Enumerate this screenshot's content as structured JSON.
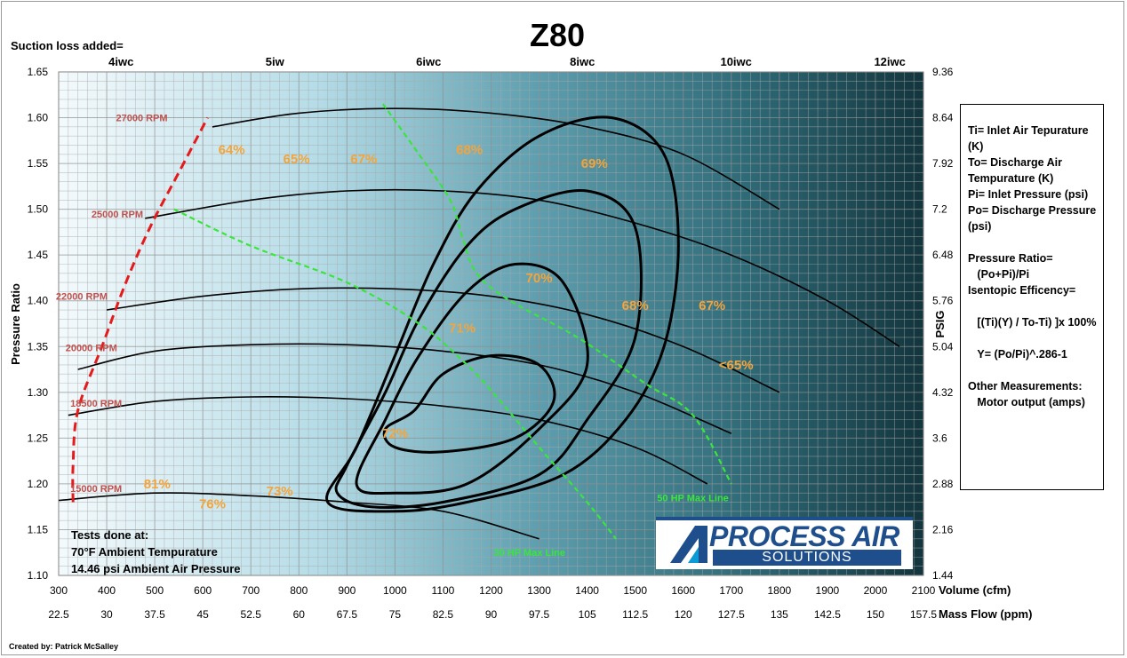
{
  "chart_data": {
    "type": "line",
    "title": "Z80",
    "xlabel": "Volume (cfm)",
    "x2label": "Mass Flow (ppm)",
    "ylabel": "Pressure Ratio",
    "y2label": "PSIG",
    "suction_label": "Suction loss added=",
    "xlim": [
      300,
      2100
    ],
    "ylim": [
      1.1,
      1.65
    ],
    "x_ticks": [
      300,
      400,
      500,
      600,
      700,
      800,
      900,
      1000,
      1100,
      1200,
      1300,
      1400,
      1500,
      1600,
      1700,
      1800,
      1900,
      2000,
      2100
    ],
    "x2_ticks": [
      "22.5",
      "30",
      "37.5",
      "45",
      "52.5",
      "60",
      "67.5",
      "75",
      "82.5",
      "90",
      "97.5",
      "105",
      "112.5",
      "120",
      "127.5",
      "135",
      "142.5",
      "150",
      "157.5"
    ],
    "y_ticks": [
      "1.10",
      "1.15",
      "1.20",
      "1.25",
      "1.30",
      "1.35",
      "1.40",
      "1.45",
      "1.50",
      "1.55",
      "1.60",
      "1.65"
    ],
    "y2_ticks": [
      "1.44",
      "2.16",
      "2.88",
      "3.6",
      "4.32",
      "5.04",
      "5.76",
      "6.48",
      "7.2",
      "7.92",
      "8.64",
      "9.36"
    ],
    "suction_ticks": [
      {
        "label": "4iwc",
        "x": 430
      },
      {
        "label": "5iw",
        "x": 750
      },
      {
        "label": "6iwc",
        "x": 1070
      },
      {
        "label": "8iwc",
        "x": 1390
      },
      {
        "label": "10iwc",
        "x": 1710
      },
      {
        "label": "12iwc",
        "x": 2030
      }
    ],
    "grid": true,
    "speed_lines": [
      {
        "name": "15000 RPM",
        "label_at": [
          378,
          1.195
        ],
        "points": [
          [
            300,
            1.182
          ],
          [
            500,
            1.19
          ],
          [
            700,
            1.187
          ],
          [
            900,
            1.18
          ],
          [
            1100,
            1.17
          ],
          [
            1300,
            1.14
          ]
        ]
      },
      {
        "name": "18500 RPM",
        "label_at": [
          378,
          1.288
        ],
        "points": [
          [
            320,
            1.275
          ],
          [
            500,
            1.29
          ],
          [
            700,
            1.295
          ],
          [
            900,
            1.293
          ],
          [
            1100,
            1.285
          ],
          [
            1300,
            1.27
          ],
          [
            1500,
            1.24
          ],
          [
            1650,
            1.2
          ]
        ]
      },
      {
        "name": "20000 RPM",
        "label_at": [
          368,
          1.349
        ],
        "points": [
          [
            340,
            1.325
          ],
          [
            500,
            1.345
          ],
          [
            700,
            1.352
          ],
          [
            900,
            1.352
          ],
          [
            1100,
            1.345
          ],
          [
            1300,
            1.33
          ],
          [
            1500,
            1.3
          ],
          [
            1700,
            1.255
          ]
        ]
      },
      {
        "name": "22000 RPM",
        "label_at": [
          348,
          1.405
        ],
        "points": [
          [
            400,
            1.39
          ],
          [
            600,
            1.405
          ],
          [
            800,
            1.413
          ],
          [
            1000,
            1.413
          ],
          [
            1200,
            1.405
          ],
          [
            1400,
            1.385
          ],
          [
            1600,
            1.35
          ],
          [
            1800,
            1.3
          ]
        ]
      },
      {
        "name": "25000 RPM",
        "label_at": [
          422,
          1.495
        ],
        "points": [
          [
            480,
            1.49
          ],
          [
            700,
            1.51
          ],
          [
            900,
            1.52
          ],
          [
            1100,
            1.52
          ],
          [
            1300,
            1.51
          ],
          [
            1500,
            1.485
          ],
          [
            1700,
            1.45
          ],
          [
            1900,
            1.4
          ],
          [
            2050,
            1.35
          ]
        ]
      },
      {
        "name": "27000 RPM",
        "label_at": [
          473,
          1.6
        ],
        "points": [
          [
            620,
            1.59
          ],
          [
            800,
            1.605
          ],
          [
            1000,
            1.61
          ],
          [
            1200,
            1.605
          ],
          [
            1400,
            1.59
          ],
          [
            1600,
            1.56
          ],
          [
            1800,
            1.5
          ]
        ]
      }
    ],
    "efficiency_labels": [
      {
        "label": "64%",
        "x": 660,
        "y": 1.565
      },
      {
        "label": "65%",
        "x": 795,
        "y": 1.555
      },
      {
        "label": "67%",
        "x": 935,
        "y": 1.555
      },
      {
        "label": "68%",
        "x": 1155,
        "y": 1.565
      },
      {
        "label": "69%",
        "x": 1415,
        "y": 1.55
      },
      {
        "label": "70%",
        "x": 1300,
        "y": 1.425
      },
      {
        "label": "68%",
        "x": 1500,
        "y": 1.395
      },
      {
        "label": "67%",
        "x": 1660,
        "y": 1.395
      },
      {
        "label": "71%",
        "x": 1140,
        "y": 1.37
      },
      {
        "label": "<65%",
        "x": 1710,
        "y": 1.33
      },
      {
        "label": "72%",
        "x": 1000,
        "y": 1.255
      },
      {
        "label": "81%",
        "x": 505,
        "y": 1.2
      },
      {
        "label": "73%",
        "x": 760,
        "y": 1.192
      },
      {
        "label": "76%",
        "x": 620,
        "y": 1.178
      }
    ],
    "surge_line": {
      "color": "#e41a1c",
      "points": [
        [
          330,
          1.18
        ],
        [
          330,
          1.22
        ],
        [
          340,
          1.28
        ],
        [
          390,
          1.35
        ],
        [
          440,
          1.42
        ],
        [
          490,
          1.48
        ],
        [
          550,
          1.54
        ],
        [
          610,
          1.6
        ]
      ]
    },
    "max_lines": [
      {
        "name": "50 HP Max Line",
        "color": "#39e639",
        "label_at": [
          1620,
          1.185
        ],
        "points": [
          [
            975,
            1.615
          ],
          [
            1050,
            1.56
          ],
          [
            1115,
            1.51
          ],
          [
            1140,
            1.47
          ],
          [
            1170,
            1.43
          ],
          [
            1240,
            1.4
          ],
          [
            1380,
            1.36
          ],
          [
            1520,
            1.31
          ],
          [
            1620,
            1.275
          ],
          [
            1700,
            1.2
          ]
        ]
      },
      {
        "name": "30 HP Max Line",
        "color": "#39e639",
        "label_at": [
          1280,
          1.125
        ],
        "points": [
          [
            540,
            1.5
          ],
          [
            700,
            1.46
          ],
          [
            900,
            1.42
          ],
          [
            1050,
            1.375
          ],
          [
            1150,
            1.33
          ],
          [
            1220,
            1.29
          ],
          [
            1300,
            1.24
          ],
          [
            1400,
            1.18
          ],
          [
            1460,
            1.14
          ]
        ]
      }
    ],
    "efficiency_islands": [
      {
        "points": [
          [
            1040,
            1.28
          ],
          [
            1100,
            1.32
          ],
          [
            1200,
            1.34
          ],
          [
            1300,
            1.33
          ],
          [
            1330,
            1.29
          ],
          [
            1250,
            1.25
          ],
          [
            1100,
            1.235
          ],
          [
            1000,
            1.24
          ],
          [
            980,
            1.26
          ]
        ]
      },
      {
        "points": [
          [
            920,
            1.2
          ],
          [
            980,
            1.27
          ],
          [
            1050,
            1.34
          ],
          [
            1150,
            1.41
          ],
          [
            1250,
            1.44
          ],
          [
            1350,
            1.42
          ],
          [
            1400,
            1.33
          ],
          [
            1300,
            1.26
          ],
          [
            1150,
            1.2
          ],
          [
            1000,
            1.19
          ]
        ]
      },
      {
        "points": [
          [
            880,
            1.19
          ],
          [
            900,
            1.22
          ],
          [
            980,
            1.3
          ],
          [
            1050,
            1.38
          ],
          [
            1150,
            1.46
          ],
          [
            1250,
            1.5
          ],
          [
            1400,
            1.52
          ],
          [
            1500,
            1.48
          ],
          [
            1500,
            1.36
          ],
          [
            1400,
            1.27
          ],
          [
            1300,
            1.21
          ],
          [
            1100,
            1.18
          ],
          [
            950,
            1.175
          ]
        ]
      },
      {
        "points": [
          [
            860,
            1.18
          ],
          [
            920,
            1.24
          ],
          [
            1000,
            1.34
          ],
          [
            1080,
            1.44
          ],
          [
            1170,
            1.52
          ],
          [
            1300,
            1.58
          ],
          [
            1450,
            1.6
          ],
          [
            1560,
            1.56
          ],
          [
            1590,
            1.46
          ],
          [
            1560,
            1.35
          ],
          [
            1480,
            1.27
          ],
          [
            1350,
            1.21
          ],
          [
            1150,
            1.18
          ],
          [
            1000,
            1.17
          ]
        ]
      }
    ],
    "notes": {
      "tests": [
        "Tests done at:",
        "70°F Ambient Tempurature",
        "14.46 psi Ambient Air Pressure"
      ],
      "credit": "Created by: Patrick McSalley"
    }
  },
  "legend": {
    "lines": [
      "Ti= Inlet Air Tepurature (K)",
      "To= Discharge Air Tempurature (K)",
      "Pi= Inlet Pressure (psi)",
      "Po= Discharge Pressure (psi)",
      "",
      "Pressure Ratio=",
      "   (Po+Pi)/Pi",
      "Isentopic Efficency=",
      "",
      "   [(Ti)(Y) / To-Ti) ]x 100%",
      "",
      "   Y= (Po/Pi)^.286-1",
      "",
      "Other Measurements:",
      "   Motor output (amps)"
    ]
  },
  "logo": {
    "name": "PROCESS AIR",
    "tagline": "SOLUTIONS",
    "colors": {
      "primary": "#1f4e8c",
      "accent": "#0a9ad6"
    }
  }
}
